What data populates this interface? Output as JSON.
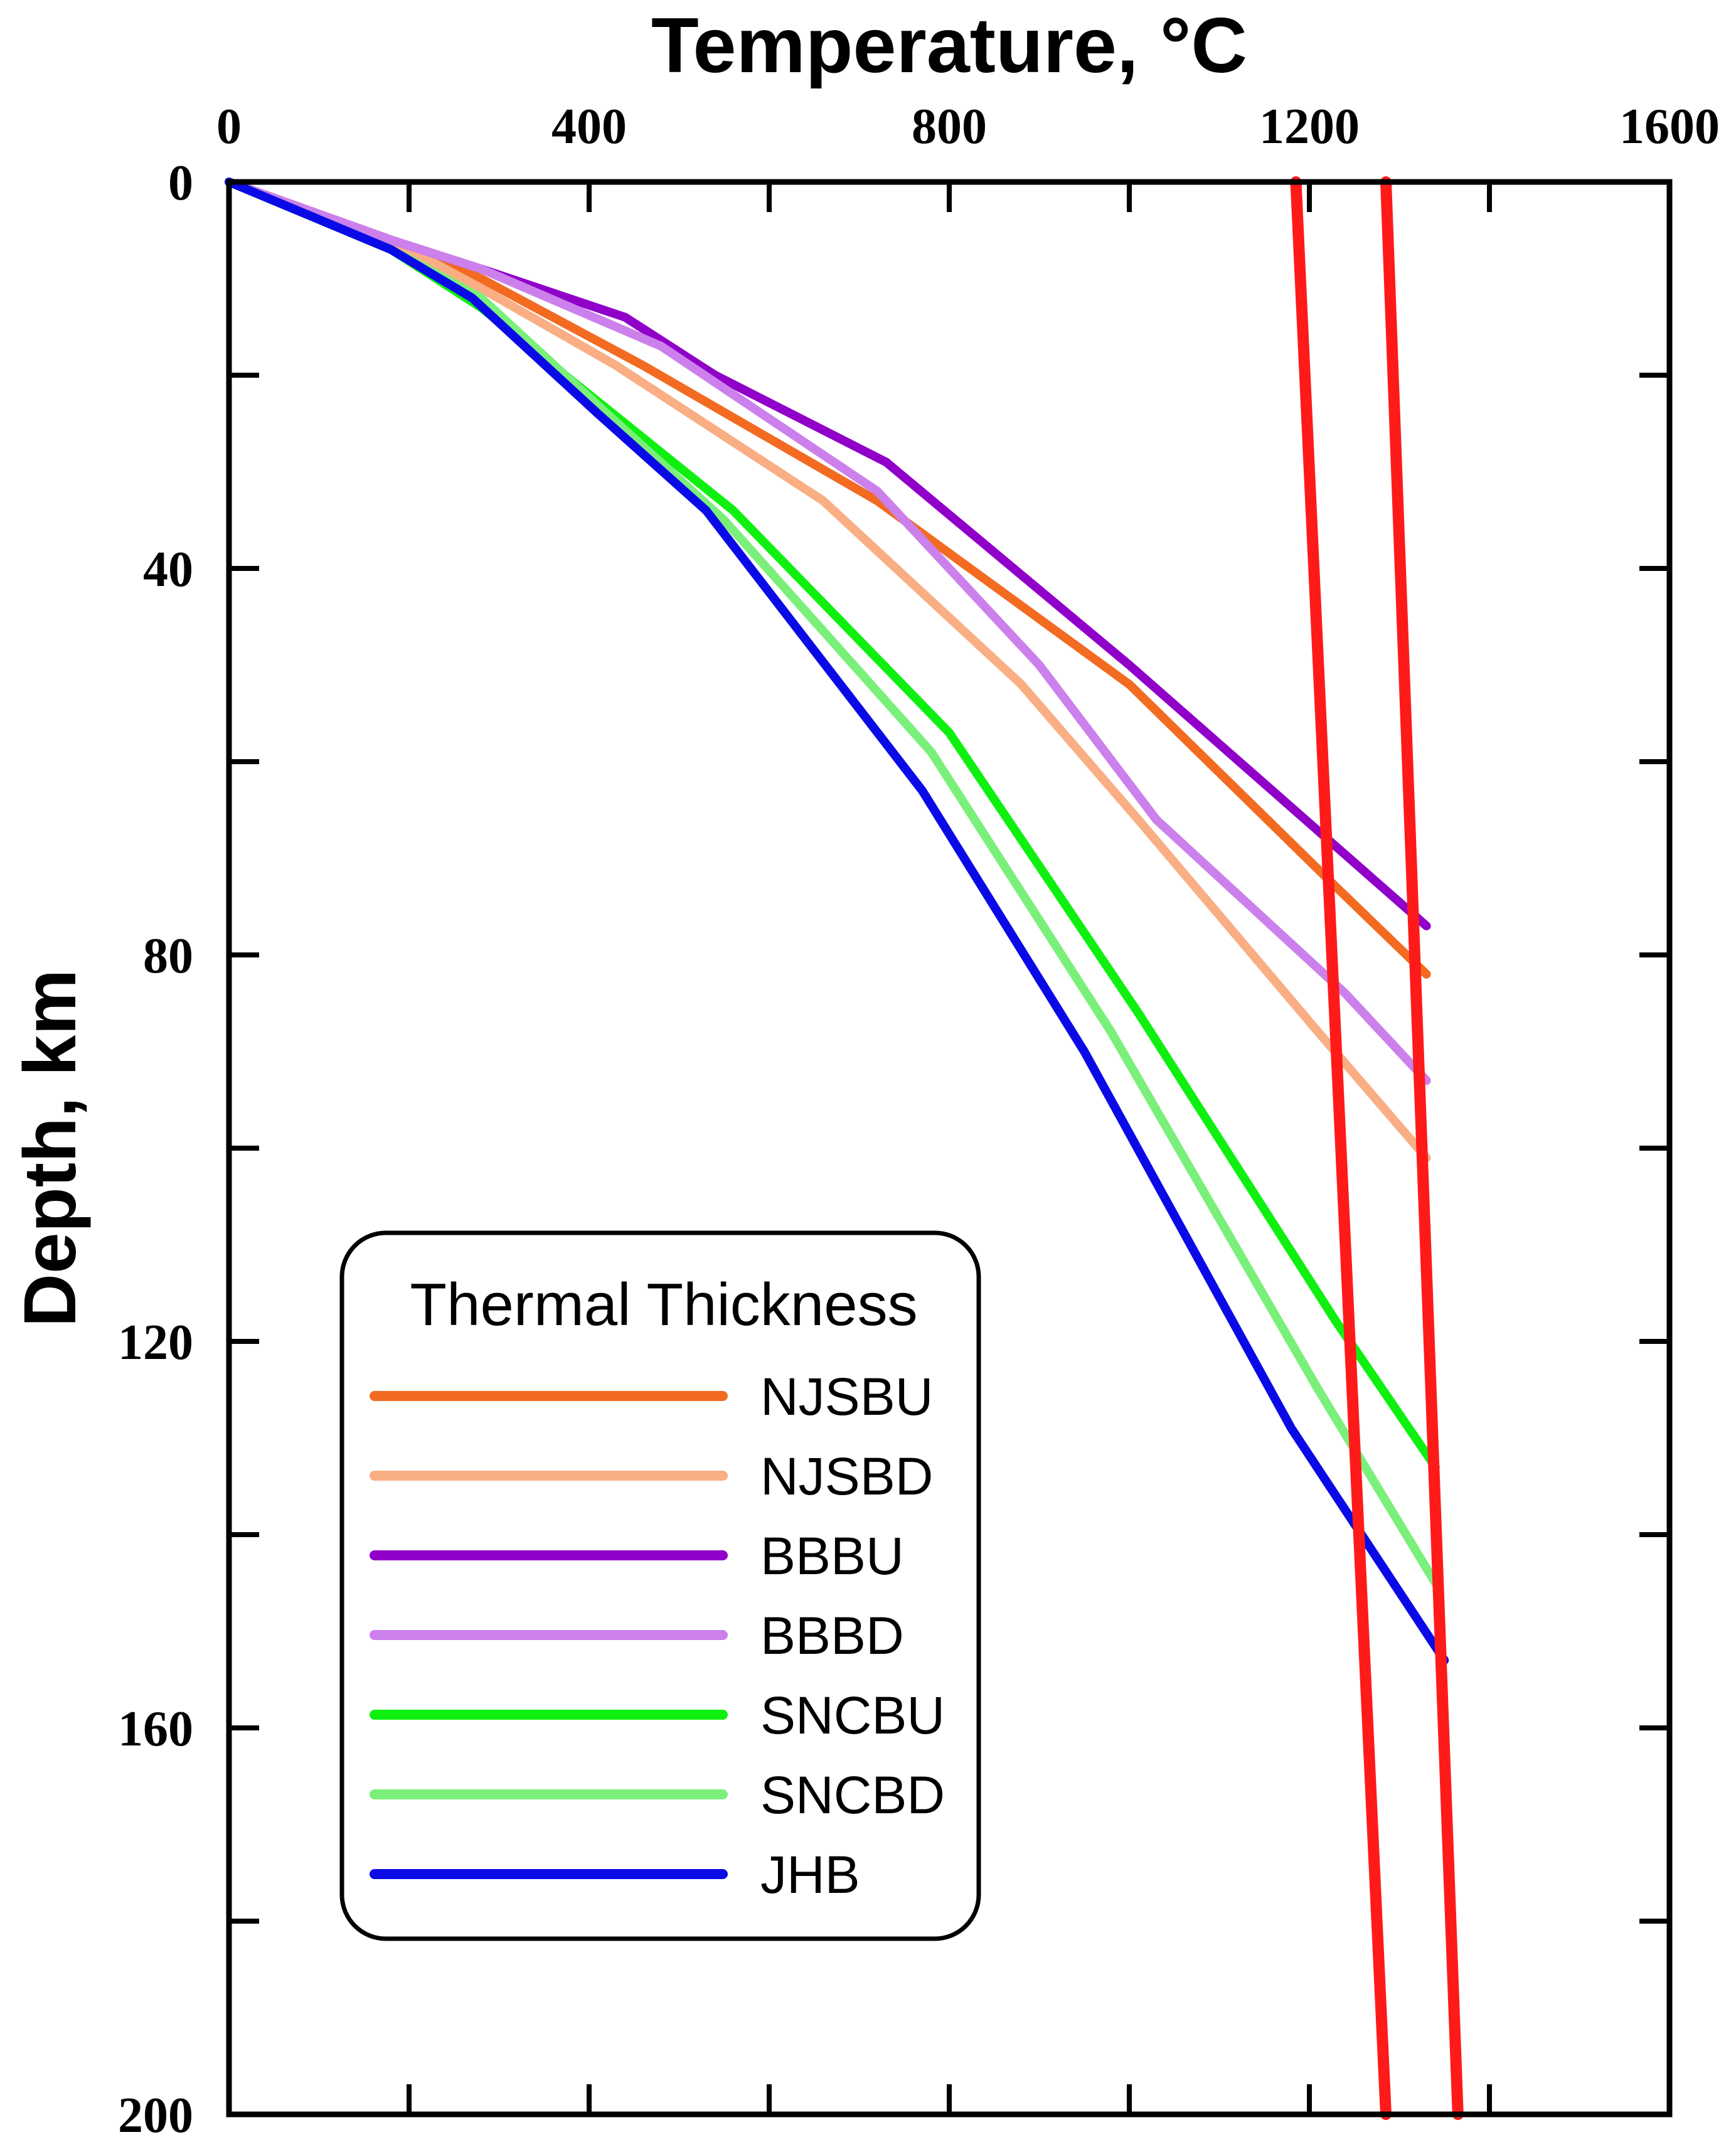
{
  "chart_data": {
    "type": "line",
    "title": "",
    "xlabel": "Temperature, °C",
    "ylabel": "Depth, km",
    "xlim": [
      0,
      1600
    ],
    "ylim": [
      0,
      200
    ],
    "y_inverted": true,
    "x_axis_position": "top",
    "x_ticks": [
      "0",
      "400",
      "800",
      "1200",
      "1600"
    ],
    "y_ticks": [
      "0",
      "40",
      "80",
      "120",
      "160",
      "200"
    ],
    "grid": false,
    "legend": {
      "title": "Thermal Thickness",
      "position": "bottom-left"
    },
    "series": [
      {
        "name": "NJSBU",
        "color": "#F26B21",
        "points": [
          [
            0,
            0
          ],
          [
            180,
            6
          ],
          [
            280,
            10
          ],
          [
            460,
            19
          ],
          [
            720,
            33
          ],
          [
            1000,
            52
          ],
          [
            1230,
            73
          ],
          [
            1330,
            82
          ]
        ]
      },
      {
        "name": "NJSBD",
        "color": "#F9AE84",
        "points": [
          [
            0,
            0
          ],
          [
            180,
            6
          ],
          [
            280,
            11
          ],
          [
            430,
            19
          ],
          [
            660,
            33
          ],
          [
            880,
            52
          ],
          [
            1010,
            66
          ],
          [
            1210,
            88
          ],
          [
            1330,
            101
          ]
        ]
      },
      {
        "name": "BBBU",
        "color": "#9000C8",
        "points": [
          [
            0,
            0
          ],
          [
            180,
            6
          ],
          [
            280,
            9
          ],
          [
            440,
            14
          ],
          [
            540,
            20
          ],
          [
            730,
            29
          ],
          [
            1000,
            50
          ],
          [
            1220,
            68
          ],
          [
            1330,
            77
          ]
        ]
      },
      {
        "name": "BBBD",
        "color": "#CC80EC",
        "points": [
          [
            0,
            0
          ],
          [
            180,
            6
          ],
          [
            280,
            9
          ],
          [
            480,
            17
          ],
          [
            720,
            32
          ],
          [
            900,
            50
          ],
          [
            1030,
            66
          ],
          [
            1240,
            84
          ],
          [
            1330,
            93
          ]
        ]
      },
      {
        "name": "SNCBU",
        "color": "#10F010",
        "points": [
          [
            0,
            0
          ],
          [
            180,
            7
          ],
          [
            280,
            13
          ],
          [
            440,
            25
          ],
          [
            560,
            34
          ],
          [
            800,
            57
          ],
          [
            1010,
            86
          ],
          [
            1230,
            118
          ],
          [
            1340,
            133
          ]
        ]
      },
      {
        "name": "SNCBD",
        "color": "#7AF07A",
        "points": [
          [
            0,
            0
          ],
          [
            180,
            7
          ],
          [
            280,
            12
          ],
          [
            420,
            24
          ],
          [
            550,
            35
          ],
          [
            780,
            59
          ],
          [
            980,
            88
          ],
          [
            1210,
            125
          ],
          [
            1340,
            145
          ]
        ]
      },
      {
        "name": "JHB",
        "color": "#0A0AE6",
        "points": [
          [
            0,
            0
          ],
          [
            180,
            7
          ],
          [
            270,
            12
          ],
          [
            410,
            24
          ],
          [
            530,
            34
          ],
          [
            770,
            63
          ],
          [
            950,
            90
          ],
          [
            1180,
            129
          ],
          [
            1350,
            153
          ]
        ]
      }
    ],
    "reference_lines": [
      {
        "name": "adiabat-left",
        "color": "#FF1A1A",
        "points": [
          [
            1185,
            0
          ],
          [
            1285,
            200
          ]
        ]
      },
      {
        "name": "adiabat-right",
        "color": "#FF1A1A",
        "points": [
          [
            1285,
            0
          ],
          [
            1365,
            200
          ]
        ]
      }
    ]
  }
}
